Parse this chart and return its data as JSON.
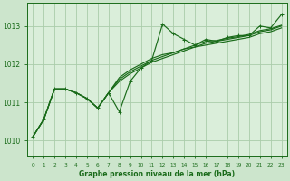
{
  "background_color": "#cce5cc",
  "plot_bg_color": "#daeeda",
  "grid_color": "#aaccaa",
  "line_color": "#1a6b1a",
  "xlabel": "Graphe pression niveau de la mer (hPa)",
  "xlim": [
    -0.5,
    23.5
  ],
  "ylim": [
    1009.6,
    1013.6
  ],
  "yticks": [
    1010,
    1011,
    1012,
    1013
  ],
  "xticks": [
    0,
    1,
    2,
    3,
    4,
    5,
    6,
    7,
    8,
    9,
    10,
    11,
    12,
    13,
    14,
    15,
    16,
    17,
    18,
    19,
    20,
    21,
    22,
    23
  ],
  "main_y": [
    1010.1,
    1010.55,
    1011.35,
    1011.35,
    1011.25,
    1011.1,
    1010.85,
    1011.25,
    1010.75,
    1011.55,
    1011.9,
    1012.1,
    1013.05,
    1012.8,
    1012.65,
    1012.5,
    1012.65,
    1012.6,
    1012.7,
    1012.75,
    1012.75,
    1013.0,
    1012.95,
    1013.3
  ],
  "band_lines": [
    [
      1010.1,
      1010.55,
      1011.35,
      1011.35,
      1011.25,
      1011.1,
      1010.85,
      1011.25,
      1011.55,
      1011.75,
      1011.9,
      1012.05,
      1012.15,
      1012.25,
      1012.35,
      1012.45,
      1012.5,
      1012.55,
      1012.6,
      1012.65,
      1012.7,
      1012.8,
      1012.85,
      1012.95
    ],
    [
      1010.1,
      1010.55,
      1011.35,
      1011.35,
      1011.25,
      1011.1,
      1010.85,
      1011.25,
      1011.6,
      1011.8,
      1011.95,
      1012.1,
      1012.2,
      1012.3,
      1012.4,
      1012.45,
      1012.55,
      1012.6,
      1012.65,
      1012.7,
      1012.75,
      1012.85,
      1012.9,
      1013.0
    ],
    [
      1010.1,
      1010.55,
      1011.35,
      1011.35,
      1011.25,
      1011.1,
      1010.85,
      1011.25,
      1011.65,
      1011.85,
      1012.0,
      1012.15,
      1012.25,
      1012.3,
      1012.4,
      1012.5,
      1012.6,
      1012.62,
      1012.68,
      1012.72,
      1012.78,
      1012.88,
      1012.93,
      1013.02
    ]
  ]
}
